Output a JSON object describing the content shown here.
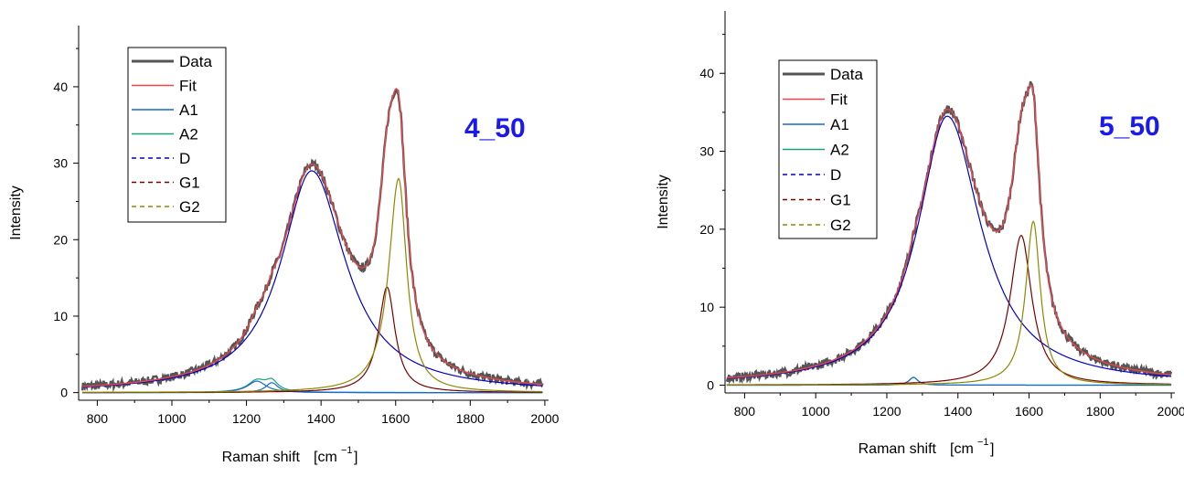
{
  "chart_data": [
    {
      "type": "line",
      "annotation": "4_50",
      "xlabel": "Raman shift",
      "xunit": "[cm",
      "xunit_sup": "−1",
      "xunit_close": "]",
      "ylabel": "Intensity",
      "xlim": [
        750,
        2010
      ],
      "ylim": [
        -1,
        48
      ],
      "xticks": [
        800,
        1000,
        1200,
        1400,
        1600,
        1800,
        2000
      ],
      "yticks": [
        0,
        10,
        20,
        30,
        40
      ],
      "legend": [
        "Data",
        "Fit",
        "A1",
        "A2",
        "D",
        "G1",
        "G2"
      ],
      "legend_position": "top-left",
      "peaks": {
        "A1": {
          "center": 1375,
          "amp": 29.0,
          "hwl": 100,
          "hwr": 110
        },
        "A2a": {
          "center": 1228,
          "amp": 1.5,
          "hwl": 30,
          "hwr": 30
        },
        "A2b": {
          "center": 1268,
          "amp": 1.3,
          "hwl": 20,
          "hwr": 20
        },
        "G1": {
          "center": 1577,
          "amp": 13.8,
          "hwl": 28,
          "hwr": 26
        },
        "G2": {
          "center": 1608,
          "amp": 28.0,
          "hwl": 32,
          "hwr": 26
        }
      },
      "data_range": [
        760,
        1995
      ],
      "dip_near": [
        1490,
        17.2
      ]
    },
    {
      "type": "line",
      "annotation": "5_50",
      "xlabel": "Raman shift",
      "xunit": "[cm",
      "xunit_sup": "−1",
      "xunit_close": "]",
      "ylabel": "Intensity",
      "xlim": [
        745,
        2010
      ],
      "ylim": [
        -1,
        48
      ],
      "xticks": [
        800,
        1000,
        1200,
        1400,
        1600,
        1800,
        2000
      ],
      "yticks": [
        0,
        10,
        20,
        30,
        40
      ],
      "legend": [
        "Data",
        "Fit",
        "A1",
        "A2",
        "D",
        "G1",
        "G2"
      ],
      "legend_position": "top-left",
      "peaks": {
        "A1": {
          "center": 1370,
          "amp": 34.5,
          "hwl": 100,
          "hwr": 115
        },
        "A2a": {
          "center": 1275,
          "amp": 1.0,
          "hwl": 15,
          "hwr": 15
        },
        "G1": {
          "center": 1578,
          "amp": 19.2,
          "hwl": 38,
          "hwr": 36
        },
        "G2": {
          "center": 1612,
          "amp": 21.0,
          "hwl": 26,
          "hwr": 24
        }
      },
      "data_range": [
        750,
        2000
      ],
      "dip_near": [
        1490,
        22.0
      ]
    }
  ],
  "colors": {
    "Data": "#555555",
    "Fit": "#e8474a",
    "A1": "#1a67cf",
    "A2": "#1aa374",
    "D": "#0000c8",
    "G1": "#7a0000",
    "G2": "#8a8a00",
    "annotation": "#1a1aee"
  }
}
